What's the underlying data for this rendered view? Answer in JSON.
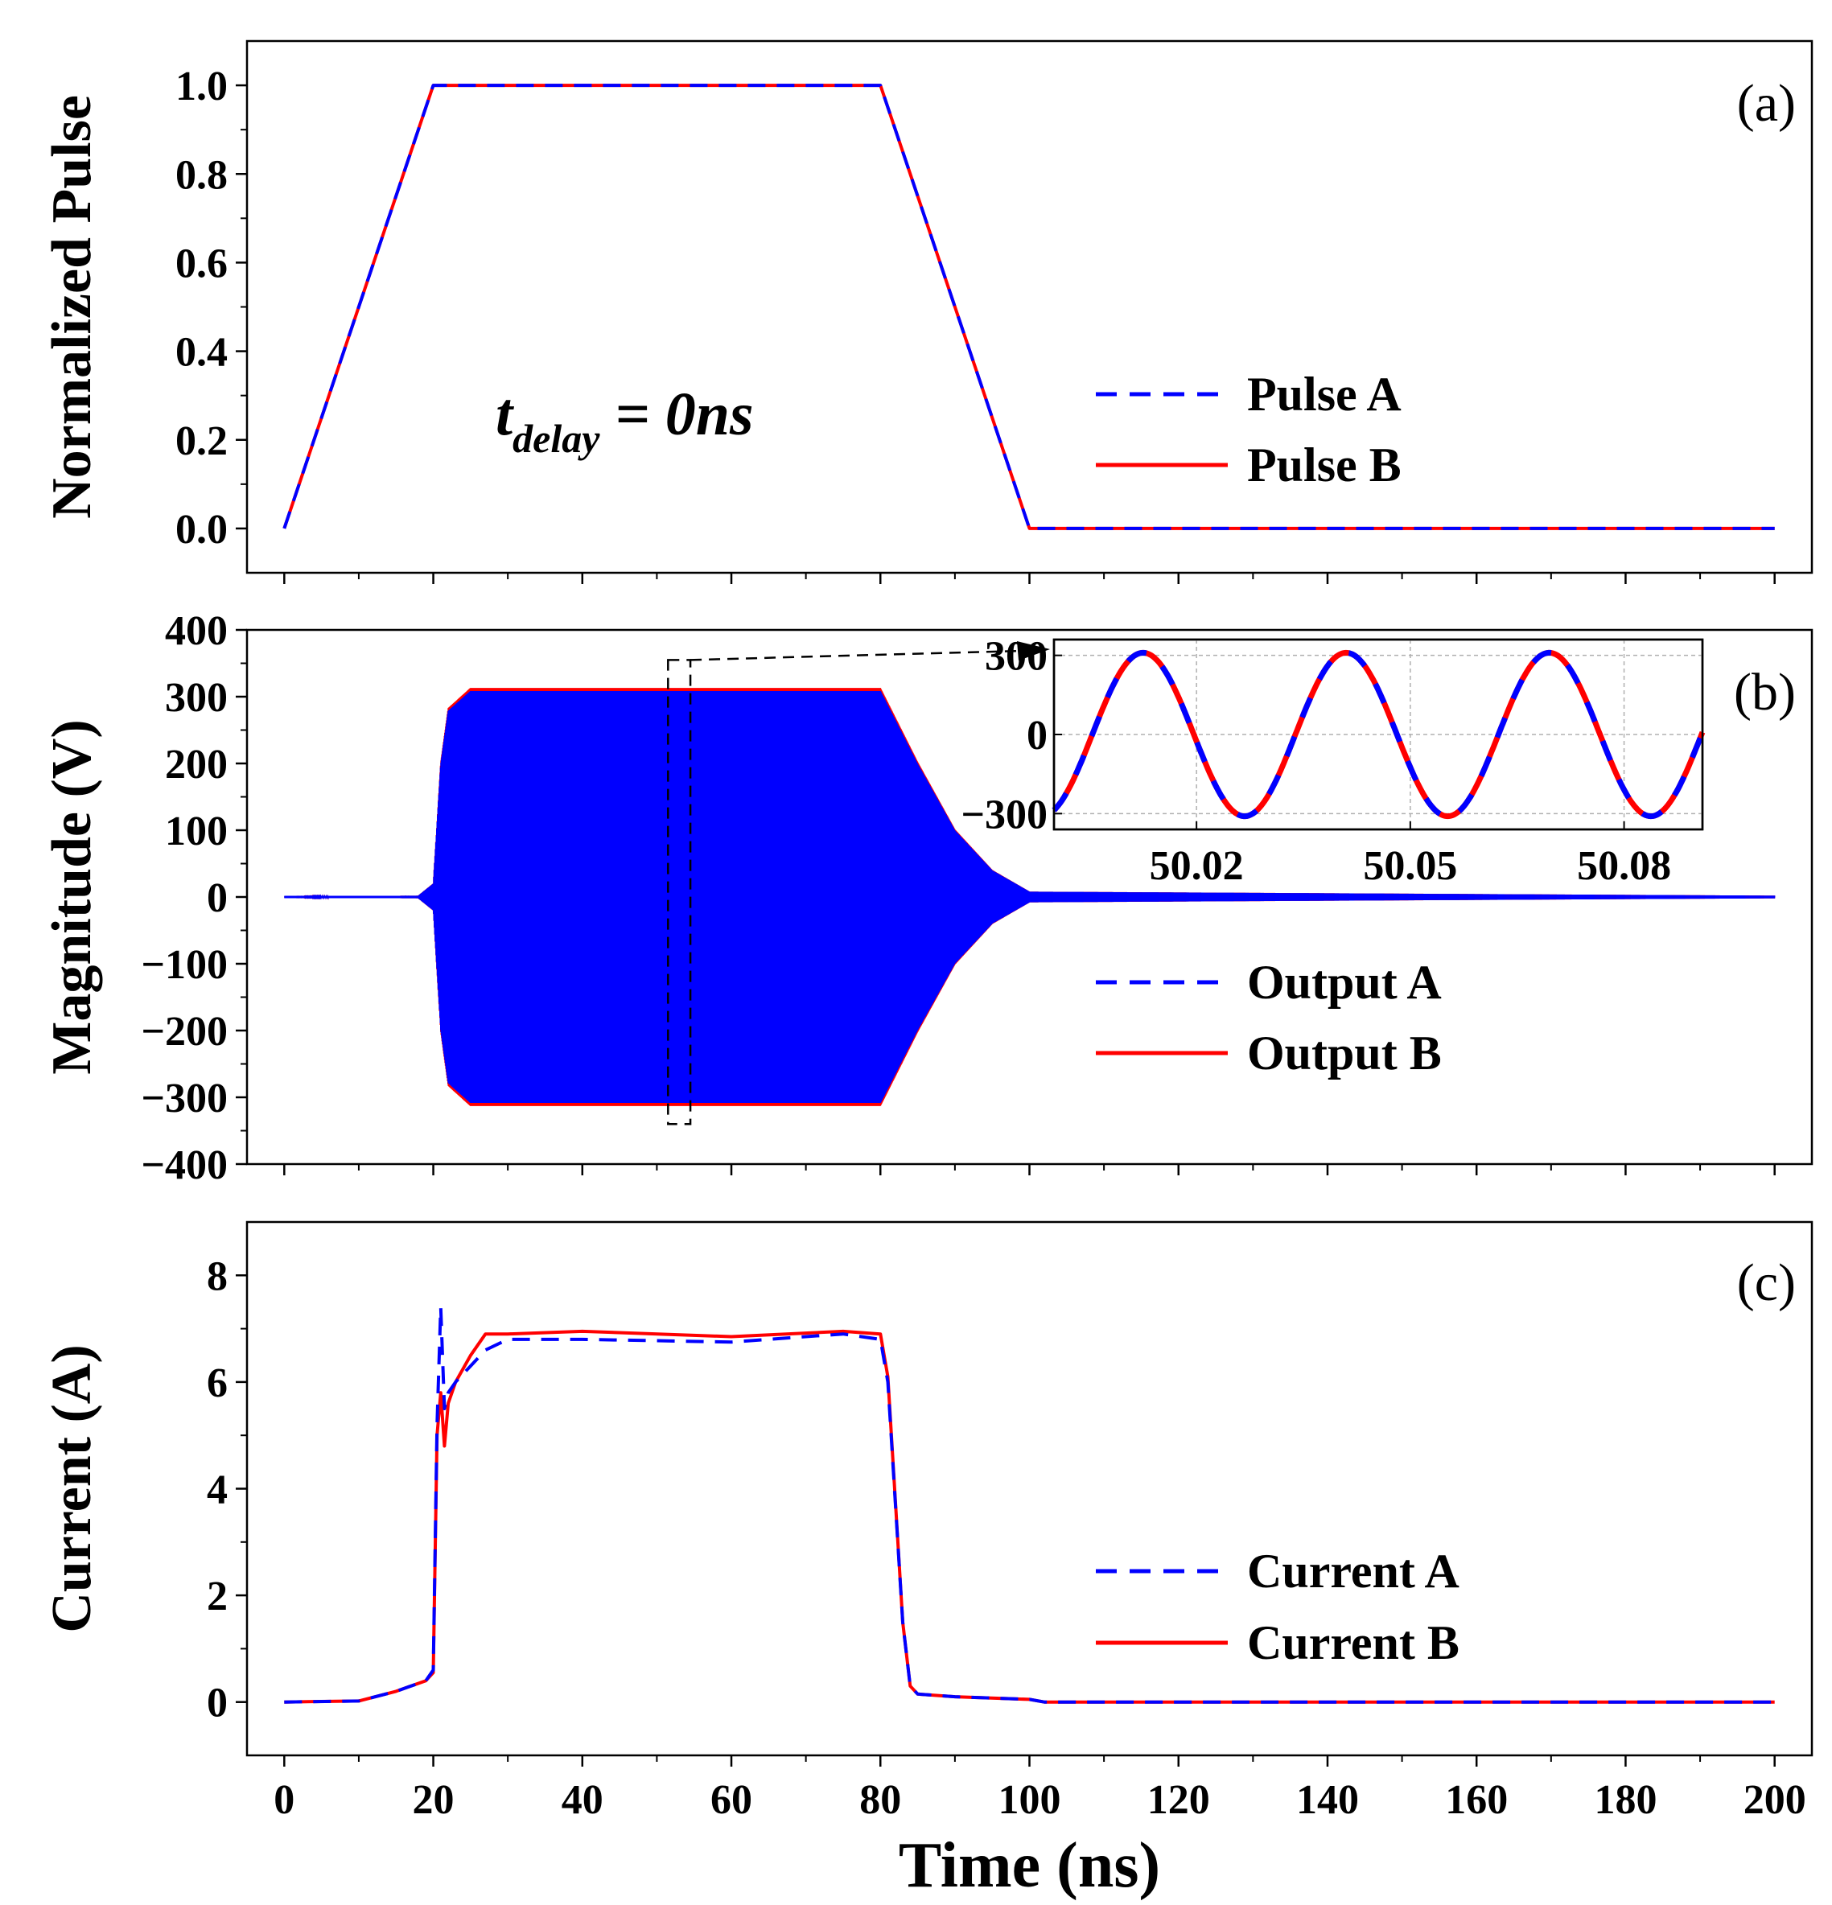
{
  "chart_data": [
    {
      "panel": "(a)",
      "type": "line",
      "ylabel": "Normalized Pulse",
      "xlim": [
        -5,
        205
      ],
      "ylim": [
        -0.1,
        1.1
      ],
      "yticks": [
        "0.0",
        "0.2",
        "0.4",
        "0.6",
        "0.8",
        "1.0"
      ],
      "ytick_values": [
        0,
        0.2,
        0.4,
        0.6,
        0.8,
        1.0
      ],
      "annotation": {
        "main": "t",
        "sub": "delay",
        "rest": " = 0ns"
      },
      "legend": {
        "position": "center-right",
        "entries": [
          "Pulse A",
          "Pulse B"
        ]
      },
      "series": [
        {
          "name": "Pulse A",
          "color": "#0000ff",
          "style": "dashed",
          "x": [
            0,
            20,
            80,
            100,
            200
          ],
          "y": [
            0,
            1,
            1,
            0,
            0
          ]
        },
        {
          "name": "Pulse B",
          "color": "#ff0000",
          "style": "solid",
          "x": [
            0,
            20,
            80,
            100,
            200
          ],
          "y": [
            0,
            1,
            1,
            0,
            0
          ]
        }
      ]
    },
    {
      "panel": "(b)",
      "type": "line",
      "ylabel": "Magnitude (V)",
      "xlim": [
        -5,
        205
      ],
      "ylim": [
        -400,
        400
      ],
      "yticks": [
        "−400",
        "−300",
        "−200",
        "−100",
        "0",
        "100",
        "200",
        "300",
        "400"
      ],
      "ytick_values": [
        -400,
        -300,
        -200,
        -100,
        0,
        100,
        200,
        300,
        400
      ],
      "legend": {
        "position": "lower-right",
        "entries": [
          "Output A",
          "Output B"
        ]
      },
      "envelope_description": "RF burst: rises from 20 ns to ~310 V peak by ~25 ns, flat until 80 ns, decays to 0 by ~100 ns",
      "envelope": {
        "x": [
          0,
          18,
          20,
          21,
          22,
          25,
          80,
          85,
          90,
          95,
          100,
          200
        ],
        "amplitude": [
          0,
          2,
          20,
          200,
          280,
          310,
          310,
          200,
          100,
          40,
          8,
          2
        ]
      },
      "series": [
        {
          "name": "Output A",
          "color": "#0000ff",
          "style": "dashed"
        },
        {
          "name": "Output B",
          "color": "#ff0000",
          "style": "solid"
        }
      ],
      "zoom_box": {
        "x_range": [
          51.5,
          54.5
        ],
        "y_range": [
          -340,
          355
        ]
      },
      "inset": {
        "xlim": [
          50.0,
          50.091
        ],
        "ylim": [
          -360,
          360
        ],
        "xticks": [
          "50.02",
          "50.05",
          "50.08"
        ],
        "xtick_values": [
          50.02,
          50.05,
          50.08
        ],
        "yticks": [
          "−300",
          "0",
          "300"
        ],
        "ytick_values": [
          -300,
          0,
          300
        ],
        "grid": true,
        "amplitude": 310,
        "period": 0.0285,
        "first_peak_x": 50.0125
      }
    },
    {
      "panel": "(c)",
      "type": "line",
      "ylabel": "Current (A)",
      "xlabel": "Time (ns)",
      "xlim": [
        -5,
        205
      ],
      "ylim": [
        -1,
        9
      ],
      "yticks": [
        "0",
        "2",
        "4",
        "6",
        "8"
      ],
      "ytick_values": [
        0,
        2,
        4,
        6,
        8
      ],
      "xticks": [
        "0",
        "20",
        "40",
        "60",
        "80",
        "100",
        "120",
        "140",
        "160",
        "180",
        "200"
      ],
      "xtick_values": [
        0,
        20,
        40,
        60,
        80,
        100,
        120,
        140,
        160,
        180,
        200
      ],
      "legend": {
        "position": "lower-right",
        "entries": [
          "Current A",
          "Current B"
        ]
      },
      "series": [
        {
          "name": "Current A",
          "color": "#0000ff",
          "style": "dashed",
          "x": [
            0,
            10,
            15,
            19,
            20,
            20.5,
            21,
            21.5,
            22,
            23,
            25,
            27,
            30,
            40,
            60,
            75,
            80,
            81,
            83,
            84,
            85,
            90,
            100,
            102,
            200
          ],
          "y": [
            0,
            0.02,
            0.2,
            0.4,
            0.6,
            5.2,
            7.4,
            5.5,
            5.8,
            6.0,
            6.3,
            6.6,
            6.8,
            6.8,
            6.75,
            6.9,
            6.8,
            6.0,
            1.5,
            0.3,
            0.15,
            0.1,
            0.05,
            0,
            0
          ]
        },
        {
          "name": "Current B",
          "color": "#ff0000",
          "style": "solid",
          "x": [
            0,
            10,
            15,
            19,
            20,
            20.5,
            21,
            21.5,
            22,
            23,
            25,
            27,
            30,
            40,
            60,
            75,
            80,
            81,
            83,
            84,
            85,
            90,
            100,
            102,
            200
          ],
          "y": [
            0,
            0.02,
            0.2,
            0.4,
            0.55,
            5.0,
            5.8,
            4.8,
            5.6,
            6.0,
            6.5,
            6.9,
            6.9,
            6.95,
            6.85,
            6.95,
            6.9,
            6.1,
            1.5,
            0.3,
            0.15,
            0.1,
            0.05,
            0,
            0
          ]
        }
      ]
    }
  ]
}
